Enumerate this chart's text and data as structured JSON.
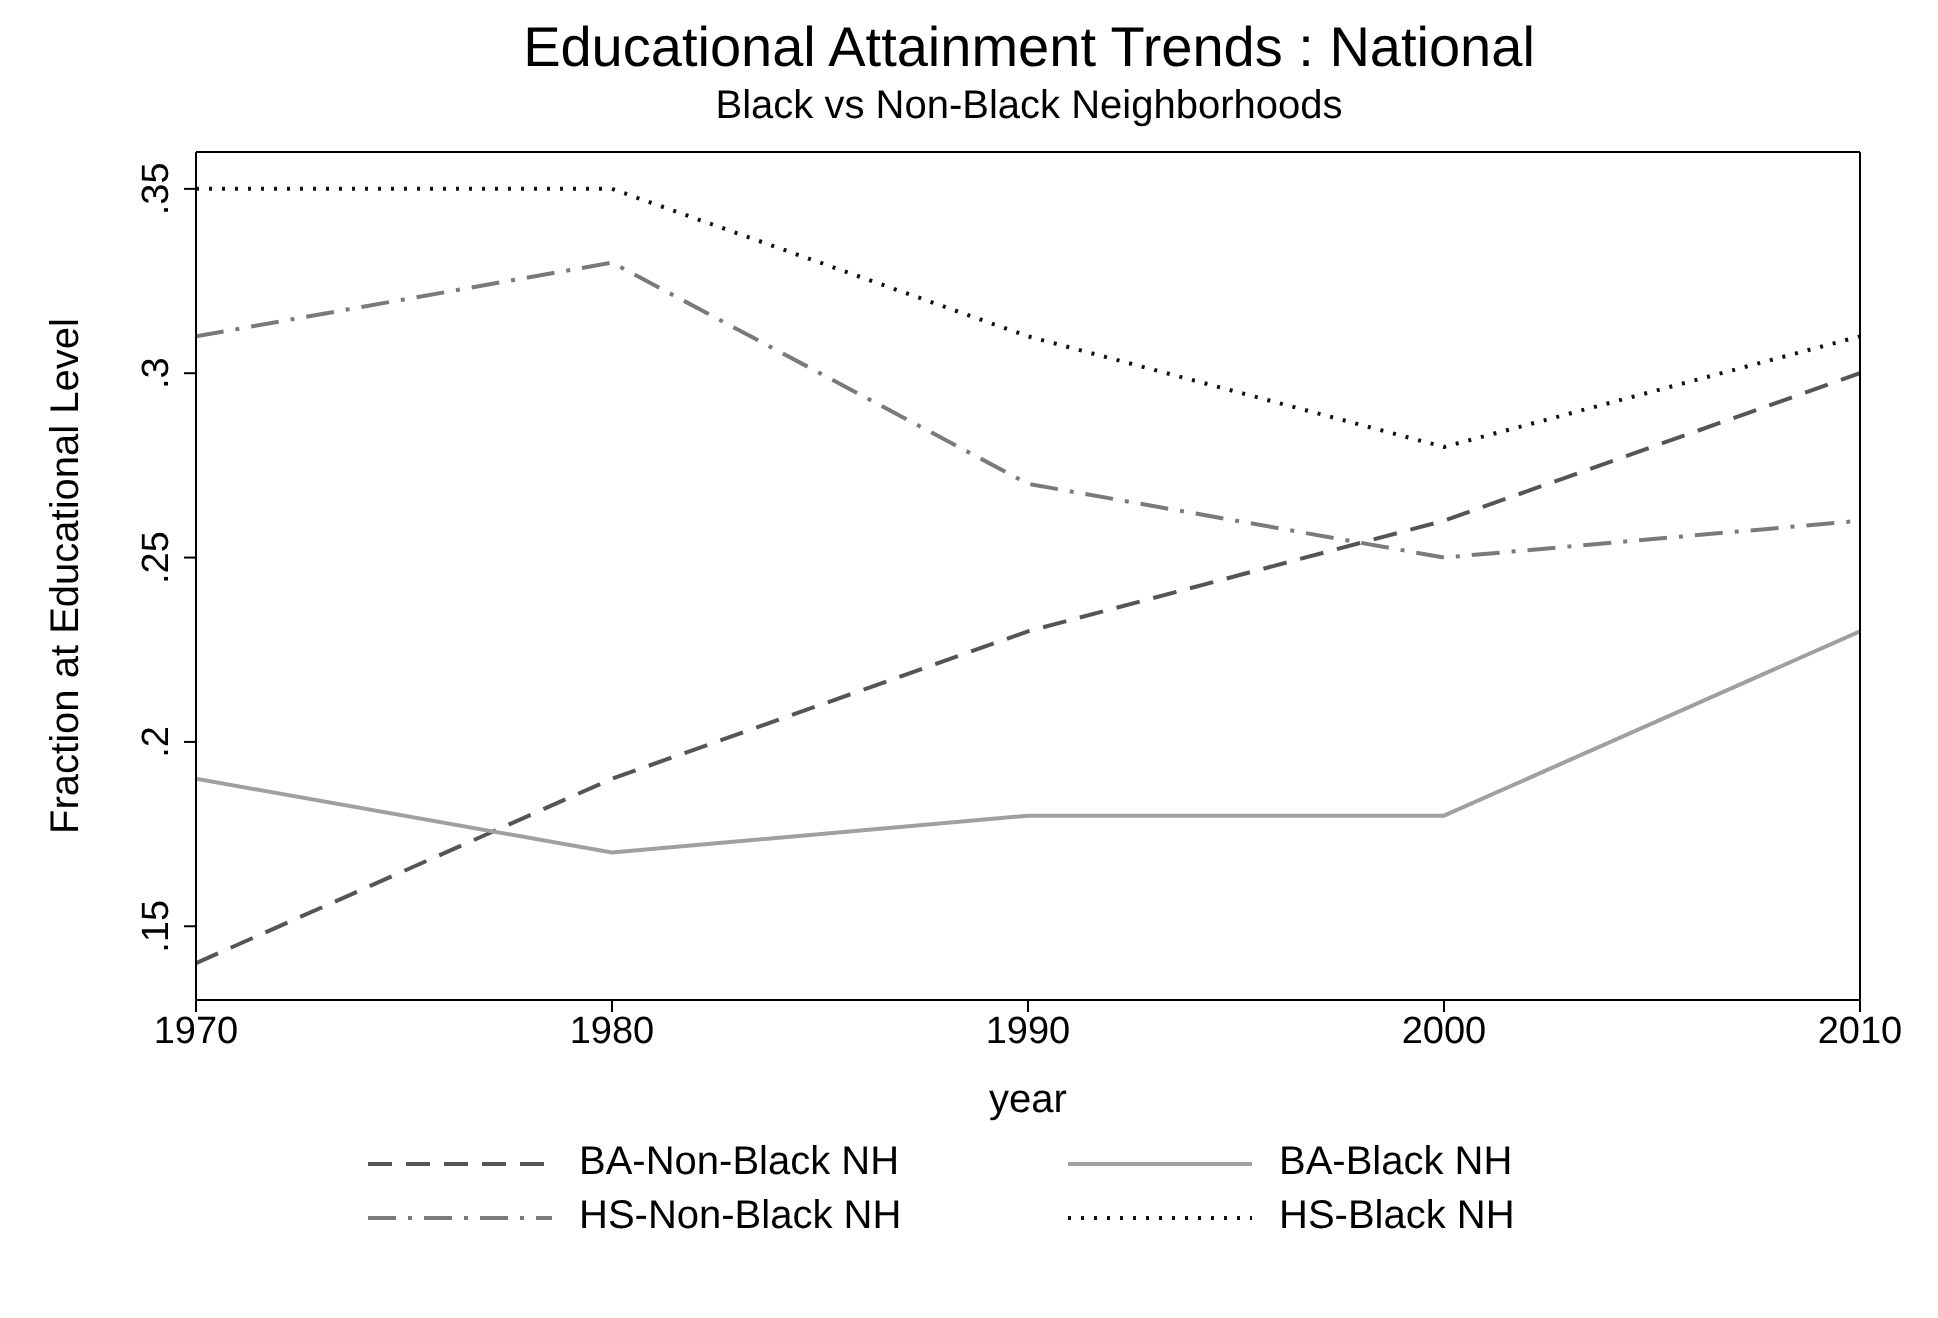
{
  "chart_data": {
    "type": "line",
    "title": "Educational Attainment Trends : National",
    "subtitle": "Black vs Non-Black Neighborhoods",
    "xlabel": "year",
    "ylabel": "Fraction at Educational Level",
    "x": [
      1970,
      1980,
      1990,
      2000,
      2010
    ],
    "series": [
      {
        "name": "BA-Non-Black NH",
        "color": "#555555",
        "line_style": "dashed",
        "values": [
          0.14,
          0.19,
          0.23,
          0.26,
          0.3
        ]
      },
      {
        "name": "BA-Black NH",
        "color": "#a0a0a0",
        "line_style": "solid",
        "values": [
          0.19,
          0.17,
          0.18,
          0.18,
          0.23
        ]
      },
      {
        "name": "HS-Non-Black NH",
        "color": "#7a7a7a",
        "line_style": "dashdot",
        "values": [
          0.31,
          0.33,
          0.27,
          0.25,
          0.26
        ]
      },
      {
        "name": "HS-Black NH",
        "color": "#111111",
        "line_style": "dotted",
        "values": [
          0.35,
          0.35,
          0.31,
          0.28,
          0.31
        ]
      }
    ],
    "xlim": [
      1970,
      2010
    ],
    "xticks": [
      1970,
      1980,
      1990,
      2000,
      2010
    ],
    "ylim": [
      0.13,
      0.36
    ],
    "yticks": [
      {
        "value": 0.15,
        "label": ".15"
      },
      {
        "value": 0.2,
        "label": ".2"
      },
      {
        "value": 0.25,
        "label": ".25"
      },
      {
        "value": 0.3,
        "label": ".3"
      },
      {
        "value": 0.35,
        "label": ".35"
      }
    ],
    "grid": false,
    "legend": "bottom",
    "marker": "none"
  }
}
